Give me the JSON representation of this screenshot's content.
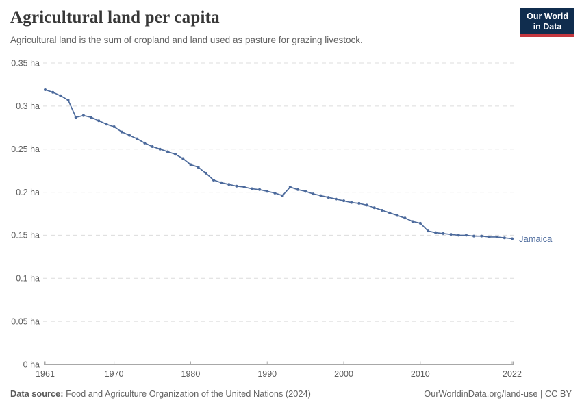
{
  "header": {
    "title": "Agricultural land per capita",
    "subtitle": "Agricultural land is the sum of cropland and land used as pasture for grazing livestock."
  },
  "logo": {
    "line1": "Our World",
    "line2": "in Data",
    "bg_color": "#102d4e",
    "accent_color": "#c4373e"
  },
  "footer": {
    "source_label": "Data source:",
    "source_text": " Food and Agriculture Organization of the United Nations (2024)",
    "right_text": "OurWorldinData.org/land-use | CC BY"
  },
  "chart_data": {
    "type": "line",
    "title": "Agricultural land per capita",
    "unit": "ha",
    "xlabel": "",
    "ylabel": "",
    "xlim": [
      1961,
      2022
    ],
    "ylim": [
      0,
      0.35
    ],
    "grid": "horizontal-dashed",
    "legend_position": "end-of-line-label",
    "x_ticks": [
      1961,
      1970,
      1980,
      1990,
      2000,
      2010,
      2022
    ],
    "y_ticks": [
      0,
      0.05,
      0.1,
      0.15,
      0.2,
      0.25,
      0.3,
      0.35
    ],
    "y_tick_labels": [
      "0 ha",
      "0.05 ha",
      "0.1 ha",
      "0.15 ha",
      "0.2 ha",
      "0.25 ha",
      "0.3 ha",
      "0.35 ha"
    ],
    "colors": {
      "line": "#4C6A9C",
      "grid": "#dcdcdc",
      "axis": "#a8a8a8",
      "tick_label": "#5e5e5e"
    },
    "series": [
      {
        "name": "Jamaica",
        "color": "#4C6A9C",
        "x": [
          1961,
          1962,
          1963,
          1964,
          1965,
          1966,
          1967,
          1968,
          1969,
          1970,
          1971,
          1972,
          1973,
          1974,
          1975,
          1976,
          1977,
          1978,
          1979,
          1980,
          1981,
          1982,
          1983,
          1984,
          1985,
          1986,
          1987,
          1988,
          1989,
          1990,
          1991,
          1992,
          1993,
          1994,
          1995,
          1996,
          1997,
          1998,
          1999,
          2000,
          2001,
          2002,
          2003,
          2004,
          2005,
          2006,
          2007,
          2008,
          2009,
          2010,
          2011,
          2012,
          2013,
          2014,
          2015,
          2016,
          2017,
          2018,
          2019,
          2020,
          2021,
          2022
        ],
        "values": [
          0.319,
          0.316,
          0.312,
          0.307,
          0.287,
          0.289,
          0.287,
          0.283,
          0.279,
          0.276,
          0.27,
          0.266,
          0.262,
          0.257,
          0.253,
          0.25,
          0.247,
          0.244,
          0.239,
          0.232,
          0.229,
          0.222,
          0.214,
          0.211,
          0.209,
          0.207,
          0.206,
          0.204,
          0.203,
          0.201,
          0.199,
          0.196,
          0.206,
          0.203,
          0.201,
          0.198,
          0.196,
          0.194,
          0.192,
          0.19,
          0.188,
          0.187,
          0.185,
          0.182,
          0.179,
          0.176,
          0.173,
          0.17,
          0.166,
          0.164,
          0.155,
          0.153,
          0.152,
          0.151,
          0.15,
          0.15,
          0.149,
          0.149,
          0.148,
          0.148,
          0.147,
          0.146
        ]
      }
    ]
  }
}
